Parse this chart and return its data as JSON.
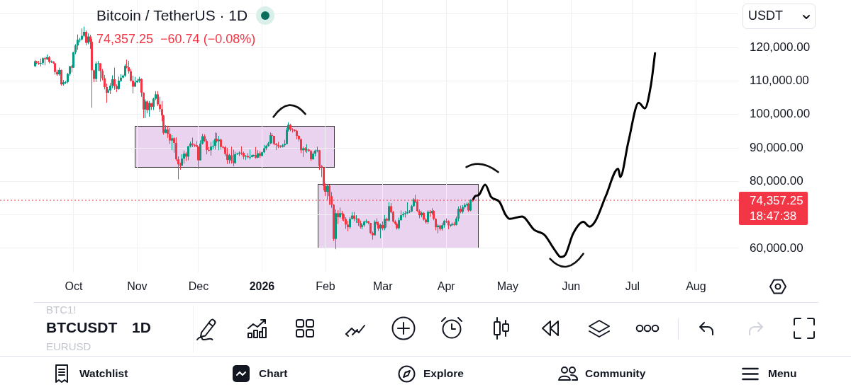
{
  "chart_data": {
    "type": "candlestick",
    "title": "Bitcoin / TetherUS · 1D",
    "subtitle": "74,357.25  −60.74 (−0.08%)",
    "series": [
      {
        "x": [
          "2025-09-12",
          "2025-09-13",
          "2025-09-14",
          "2025-09-15",
          "2025-09-16",
          "2025-09-17",
          "2025-09-18",
          "2025-09-19",
          "2025-09-20",
          "2025-09-21",
          "2025-09-22",
          "2025-09-23",
          "2025-09-24",
          "2025-09-25",
          "2025-09-26",
          "2025-09-27",
          "2025-09-28",
          "2025-09-29",
          "2025-09-30",
          "2025-10-01",
          "2025-10-02",
          "2025-10-03",
          "2025-10-04",
          "2025-10-05",
          "2025-10-06",
          "2025-10-07",
          "2025-10-08",
          "2025-10-09",
          "2025-10-10",
          "2025-10-11",
          "2025-10-12",
          "2025-10-13",
          "2025-10-14",
          "2025-10-15",
          "2025-10-16",
          "2025-10-17",
          "2025-10-18",
          "2025-10-19",
          "2025-10-20",
          "2025-10-21",
          "2025-10-22",
          "2025-10-23",
          "2025-10-24",
          "2025-10-25",
          "2025-10-26",
          "2025-10-27",
          "2025-10-28",
          "2025-10-29",
          "2025-10-30",
          "2025-10-31",
          "2025-11-01",
          "2025-11-02",
          "2025-11-03",
          "2025-11-04",
          "2025-11-05",
          "2025-11-06",
          "2025-11-07",
          "2025-11-08",
          "2025-11-09",
          "2025-11-10",
          "2025-11-11",
          "2025-11-12",
          "2025-11-13",
          "2025-11-14",
          "2025-11-15",
          "2025-11-16",
          "2025-11-17",
          "2025-11-18",
          "2025-11-19",
          "2025-11-20",
          "2025-11-21",
          "2025-11-22",
          "2025-11-23",
          "2025-11-24",
          "2025-11-25",
          "2025-11-26",
          "2025-11-27",
          "2025-11-28",
          "2025-11-29",
          "2025-11-30",
          "2025-12-01",
          "2025-12-02",
          "2025-12-03",
          "2025-12-04",
          "2025-12-05",
          "2025-12-06",
          "2025-12-07",
          "2025-12-08",
          "2025-12-09",
          "2025-12-10",
          "2025-12-11",
          "2025-12-12",
          "2025-12-13",
          "2025-12-14",
          "2025-12-15",
          "2025-12-16",
          "2025-12-17",
          "2025-12-18",
          "2025-12-19",
          "2025-12-20",
          "2025-12-21",
          "2025-12-22",
          "2025-12-23",
          "2025-12-24",
          "2025-12-25",
          "2025-12-26",
          "2025-12-27",
          "2025-12-28",
          "2025-12-29",
          "2025-12-30",
          "2025-12-31",
          "2026-01-01",
          "2026-01-02",
          "2026-01-03",
          "2026-01-04",
          "2026-01-05",
          "2026-01-06",
          "2026-01-07",
          "2026-01-08",
          "2026-01-09",
          "2026-01-10",
          "2026-01-11",
          "2026-01-12",
          "2026-01-13",
          "2026-01-14",
          "2026-01-15",
          "2026-01-16",
          "2026-01-17",
          "2026-01-18",
          "2026-01-19",
          "2026-01-20",
          "2026-01-21",
          "2026-01-22",
          "2026-01-23",
          "2026-01-24",
          "2026-01-25",
          "2026-01-26",
          "2026-01-27",
          "2026-01-28",
          "2026-01-29",
          "2026-01-30",
          "2026-01-31",
          "2026-02-01",
          "2026-02-02",
          "2026-02-03",
          "2026-02-04",
          "2026-02-05",
          "2026-02-06",
          "2026-02-07",
          "2026-02-08",
          "2026-02-09",
          "2026-02-10",
          "2026-02-11",
          "2026-02-12",
          "2026-02-13",
          "2026-02-14",
          "2026-02-15",
          "2026-02-16",
          "2026-02-17",
          "2026-02-18",
          "2026-02-19",
          "2026-02-20",
          "2026-02-21",
          "2026-02-22",
          "2026-02-23",
          "2026-02-24",
          "2026-02-25",
          "2026-02-26",
          "2026-02-27",
          "2026-02-28",
          "2026-03-01",
          "2026-03-02",
          "2026-03-03",
          "2026-03-04",
          "2026-03-05",
          "2026-03-06",
          "2026-03-07",
          "2026-03-08",
          "2026-03-09",
          "2026-03-10",
          "2026-03-11",
          "2026-03-12",
          "2026-03-13",
          "2026-03-14",
          "2026-03-15",
          "2026-03-16",
          "2026-03-17",
          "2026-03-18",
          "2026-03-19",
          "2026-03-20",
          "2026-03-21",
          "2026-03-22",
          "2026-03-23",
          "2026-03-24",
          "2026-03-25",
          "2026-03-26",
          "2026-03-27",
          "2026-03-28",
          "2026-03-29",
          "2026-03-30",
          "2026-03-31",
          "2026-04-01",
          "2026-04-02",
          "2026-04-03",
          "2026-04-04",
          "2026-04-05",
          "2026-04-06",
          "2026-04-07",
          "2026-04-08",
          "2026-04-09",
          "2026-04-10",
          "2026-04-11",
          "2026-04-12",
          "2026-04-13",
          "2026-04-14"
        ],
        "ohlc": [
          [
            114400,
            116300,
            114200,
            115900
          ],
          [
            115900,
            116000,
            115000,
            115400
          ],
          [
            115400,
            116000,
            114800,
            115300
          ],
          [
            115300,
            116700,
            114400,
            115400
          ],
          [
            115400,
            117000,
            114800,
            116800
          ],
          [
            116800,
            117300,
            114700,
            116500
          ],
          [
            116500,
            117900,
            116300,
            117100
          ],
          [
            117100,
            117500,
            115200,
            115700
          ],
          [
            115700,
            116100,
            115400,
            115800
          ],
          [
            115800,
            115900,
            115100,
            115300
          ],
          [
            115300,
            115400,
            111900,
            112700
          ],
          [
            112700,
            113300,
            111600,
            112000
          ],
          [
            112000,
            114000,
            111600,
            113300
          ],
          [
            113300,
            113400,
            108600,
            109000
          ],
          [
            109000,
            110300,
            108600,
            109600
          ],
          [
            109600,
            110000,
            109100,
            109700
          ],
          [
            109700,
            112400,
            109300,
            112100
          ],
          [
            112100,
            114500,
            111600,
            114400
          ],
          [
            114400,
            114800,
            112600,
            114000
          ],
          [
            114000,
            118700,
            113900,
            118600
          ],
          [
            118600,
            121000,
            118000,
            120600
          ],
          [
            120600,
            123900,
            119300,
            122300
          ],
          [
            122300,
            122900,
            121500,
            122400
          ],
          [
            122400,
            125700,
            122100,
            123500
          ],
          [
            123500,
            126200,
            123100,
            124700
          ],
          [
            124700,
            125100,
            120600,
            121400
          ],
          [
            121400,
            124200,
            121000,
            123300
          ],
          [
            123300,
            123800,
            119600,
            121700
          ],
          [
            121700,
            122600,
            102000,
            113200
          ],
          [
            113200,
            113400,
            109600,
            110600
          ],
          [
            110600,
            115800,
            109700,
            115200
          ],
          [
            115200,
            116000,
            113000,
            115300
          ],
          [
            115300,
            115300,
            109800,
            113000
          ],
          [
            113000,
            113600,
            110200,
            110800
          ],
          [
            110800,
            111800,
            107500,
            108200
          ],
          [
            108200,
            109200,
            103500,
            106500
          ],
          [
            106500,
            107500,
            106400,
            107200
          ],
          [
            107200,
            109400,
            106100,
            108600
          ],
          [
            108600,
            111700,
            107800,
            110500
          ],
          [
            110500,
            114000,
            107400,
            108400
          ],
          [
            108400,
            109000,
            106700,
            107600
          ],
          [
            107600,
            111300,
            107400,
            110100
          ],
          [
            110100,
            112000,
            109700,
            111000
          ],
          [
            111000,
            111900,
            110800,
            111600
          ],
          [
            111600,
            115000,
            111200,
            114500
          ],
          [
            114500,
            116400,
            113800,
            114100
          ],
          [
            114100,
            116000,
            112200,
            112900
          ],
          [
            112900,
            113600,
            109800,
            110100
          ],
          [
            110100,
            111600,
            106300,
            108300
          ],
          [
            108300,
            111200,
            108300,
            109600
          ],
          [
            109600,
            110600,
            109400,
            110100
          ],
          [
            110100,
            111200,
            109500,
            110600
          ],
          [
            110600,
            110800,
            105300,
            106500
          ],
          [
            106500,
            106600,
            98900,
            101500
          ],
          [
            101500,
            104500,
            98900,
            103900
          ],
          [
            103900,
            104200,
            100300,
            101300
          ],
          [
            101300,
            104000,
            99300,
            103400
          ],
          [
            103400,
            103400,
            101400,
            102300
          ],
          [
            102300,
            105000,
            101300,
            104700
          ],
          [
            104700,
            107000,
            104300,
            106000
          ],
          [
            106000,
            107000,
            102500,
            103000
          ],
          [
            103000,
            105300,
            100800,
            101600
          ],
          [
            101600,
            104000,
            98000,
            99700
          ],
          [
            99700,
            99900,
            94000,
            94500
          ],
          [
            94500,
            96800,
            94400,
            95500
          ],
          [
            95500,
            96600,
            93000,
            94200
          ],
          [
            94200,
            96000,
            91200,
            92200
          ],
          [
            92200,
            93800,
            89300,
            92900
          ],
          [
            92900,
            93200,
            88600,
            91500
          ],
          [
            91500,
            93200,
            86100,
            86600
          ],
          [
            86600,
            87500,
            80600,
            85100
          ],
          [
            85100,
            85600,
            83500,
            84700
          ],
          [
            84700,
            88100,
            84600,
            86800
          ],
          [
            86800,
            89200,
            85300,
            88300
          ],
          [
            88300,
            88800,
            86100,
            87400
          ],
          [
            87400,
            90600,
            86300,
            90500
          ],
          [
            90500,
            91900,
            90100,
            91300
          ],
          [
            91300,
            93100,
            90200,
            90900
          ],
          [
            90900,
            91200,
            90200,
            90800
          ],
          [
            90800,
            92000,
            90300,
            90400
          ],
          [
            90400,
            90400,
            83800,
            86300
          ],
          [
            86300,
            92300,
            86200,
            91300
          ],
          [
            91300,
            94200,
            91000,
            93500
          ],
          [
            93500,
            94100,
            91800,
            92100
          ],
          [
            92100,
            92700,
            88100,
            89400
          ],
          [
            89400,
            90300,
            88900,
            89300
          ],
          [
            89300,
            91800,
            87700,
            90400
          ],
          [
            90400,
            92300,
            89600,
            90600
          ],
          [
            90600,
            94600,
            89500,
            92700
          ],
          [
            92700,
            94500,
            91600,
            92000
          ],
          [
            92000,
            93600,
            89300,
            92500
          ],
          [
            92500,
            92800,
            89500,
            90300
          ],
          [
            90300,
            90600,
            89800,
            90200
          ],
          [
            90200,
            90600,
            87600,
            88200
          ],
          [
            88200,
            90000,
            85200,
            86400
          ],
          [
            86400,
            88200,
            85300,
            87800
          ],
          [
            87800,
            90400,
            85300,
            86100
          ],
          [
            86100,
            89500,
            84500,
            85500
          ],
          [
            85500,
            88900,
            85200,
            88100
          ],
          [
            88100,
            88600,
            87900,
            88300
          ],
          [
            88300,
            89000,
            87600,
            88600
          ],
          [
            88600,
            90500,
            87900,
            88500
          ],
          [
            88500,
            88900,
            86600,
            87400
          ],
          [
            87400,
            87900,
            86400,
            87600
          ],
          [
            87600,
            88400,
            86900,
            87200
          ],
          [
            87200,
            89500,
            86600,
            87300
          ],
          [
            87300,
            88000,
            87200,
            87800
          ],
          [
            87800,
            88000,
            87400,
            87900
          ],
          [
            87900,
            90300,
            86800,
            87100
          ],
          [
            87100,
            89300,
            86900,
            88400
          ],
          [
            88400,
            89000,
            87000,
            87600
          ],
          [
            87600,
            88900,
            87500,
            88700
          ],
          [
            88700,
            90900,
            88400,
            89900
          ],
          [
            89900,
            90900,
            89300,
            90600
          ],
          [
            90600,
            91800,
            90400,
            91400
          ],
          [
            91400,
            94600,
            91100,
            93800
          ],
          [
            93800,
            94400,
            91300,
            93600
          ],
          [
            93600,
            93600,
            90800,
            91200
          ],
          [
            91200,
            91500,
            89400,
            90900
          ],
          [
            90900,
            91800,
            89900,
            90500
          ],
          [
            90500,
            90800,
            90000,
            90300
          ],
          [
            90300,
            91200,
            90100,
            90800
          ],
          [
            90800,
            92400,
            90200,
            91200
          ],
          [
            91200,
            96000,
            91000,
            95400
          ],
          [
            95400,
            97700,
            94900,
            96900
          ],
          [
            96900,
            97200,
            95000,
            95500
          ],
          [
            95500,
            95900,
            94600,
            95400
          ],
          [
            95400,
            95600,
            94800,
            95100
          ],
          [
            95100,
            95400,
            92600,
            93600
          ],
          [
            93600,
            93800,
            91900,
            92600
          ],
          [
            92600,
            92800,
            88400,
            89300
          ],
          [
            89300,
            90400,
            87300,
            89900
          ],
          [
            89900,
            90200,
            88800,
            89400
          ],
          [
            89400,
            91100,
            88500,
            89500
          ],
          [
            89500,
            89800,
            88800,
            89100
          ],
          [
            89100,
            89300,
            86100,
            86600
          ],
          [
            86600,
            88900,
            86500,
            88300
          ],
          [
            88300,
            89500,
            87500,
            89200
          ],
          [
            89200,
            90400,
            88700,
            89300
          ],
          [
            89300,
            89300,
            83400,
            84600
          ],
          [
            84600,
            84900,
            81300,
            84200
          ],
          [
            84200,
            84200,
            77300,
            78600
          ],
          [
            78600,
            79400,
            75600,
            76900
          ],
          [
            76900,
            79200,
            74500,
            78700
          ],
          [
            78700,
            79000,
            73000,
            75600
          ],
          [
            75600,
            76800,
            72100,
            73000
          ],
          [
            73000,
            73200,
            62200,
            62800
          ],
          [
            62800,
            71600,
            59700,
            70500
          ],
          [
            70500,
            71400,
            67300,
            69300
          ],
          [
            69300,
            72200,
            69000,
            70500
          ],
          [
            70500,
            71200,
            68300,
            70100
          ],
          [
            70100,
            70400,
            68100,
            68800
          ],
          [
            68800,
            69300,
            65800,
            67100
          ],
          [
            67100,
            68200,
            65100,
            66300
          ],
          [
            66300,
            69300,
            65800,
            68800
          ],
          [
            68800,
            70800,
            68600,
            69800
          ],
          [
            69800,
            70900,
            68100,
            68800
          ],
          [
            68800,
            69900,
            67600,
            68900
          ],
          [
            68900,
            69000,
            66700,
            67600
          ],
          [
            67600,
            68300,
            65900,
            66400
          ],
          [
            66400,
            67300,
            65700,
            66900
          ],
          [
            66900,
            68300,
            66400,
            68000
          ],
          [
            68000,
            68700,
            67500,
            68100
          ],
          [
            68100,
            68200,
            67200,
            67600
          ],
          [
            67600,
            67600,
            64300,
            64600
          ],
          [
            64600,
            65000,
            62600,
            63900
          ],
          [
            63900,
            68400,
            63900,
            67900
          ],
          [
            67900,
            69000,
            66900,
            67400
          ],
          [
            67400,
            68000,
            65200,
            65900
          ],
          [
            65900,
            67400,
            63000,
            67000
          ],
          [
            67000,
            68000,
            65400,
            66000
          ],
          [
            66000,
            70000,
            65400,
            68800
          ],
          [
            68800,
            69200,
            66200,
            68300
          ],
          [
            68300,
            73800,
            67900,
            72600
          ],
          [
            72600,
            73500,
            70400,
            70800
          ],
          [
            70800,
            71200,
            67700,
            68000
          ],
          [
            68000,
            68400,
            67000,
            67300
          ],
          [
            67300,
            67500,
            65600,
            66000
          ],
          [
            66000,
            69200,
            65600,
            68400
          ],
          [
            68400,
            71300,
            68300,
            69900
          ],
          [
            69900,
            70900,
            69300,
            70200
          ],
          [
            70200,
            71200,
            69200,
            70500
          ],
          [
            70500,
            73800,
            70200,
            70900
          ],
          [
            70900,
            71400,
            70500,
            71000
          ],
          [
            71000,
            73000,
            70900,
            72600
          ],
          [
            72600,
            75000,
            72400,
            74600
          ],
          [
            74600,
            76000,
            73500,
            74000
          ],
          [
            74000,
            74700,
            70800,
            71200
          ],
          [
            71200,
            71600,
            69000,
            69900
          ],
          [
            69900,
            71000,
            69300,
            70600
          ],
          [
            70600,
            70800,
            68300,
            68600
          ],
          [
            68600,
            69000,
            67400,
            67800
          ],
          [
            67800,
            71400,
            67300,
            70900
          ],
          [
            70900,
            71400,
            69400,
            70500
          ],
          [
            70500,
            72000,
            70100,
            71200
          ],
          [
            71200,
            71400,
            68400,
            68800
          ],
          [
            68800,
            69000,
            65400,
            66300
          ],
          [
            66300,
            67300,
            64500,
            66800
          ],
          [
            66800,
            67000,
            65300,
            65800
          ],
          [
            65800,
            67600,
            65300,
            66900
          ],
          [
            66900,
            68500,
            66100,
            68200
          ],
          [
            68200,
            68900,
            67600,
            68100
          ],
          [
            68100,
            68400,
            65700,
            66900
          ],
          [
            66900,
            67200,
            66400,
            67000
          ],
          [
            67000,
            67700,
            66700,
            67300
          ],
          [
            67300,
            67900,
            66700,
            67000
          ],
          [
            67000,
            69500,
            66800,
            68900
          ],
          [
            68900,
            72500,
            68100,
            71800
          ],
          [
            71800,
            72800,
            70500,
            70900
          ],
          [
            70900,
            72900,
            70400,
            72300
          ],
          [
            72300,
            73500,
            71700,
            73000
          ],
          [
            73000,
            73700,
            72600,
            73300
          ],
          [
            73300,
            73600,
            70900,
            71300
          ],
          [
            71300,
            74700,
            71100,
            74418
          ],
          [
            74418,
            74600,
            73900,
            74357.25
          ]
        ],
        "colors": [
          "#089981",
          "#f23645",
          "#f23645",
          "#089981",
          "#089981",
          "#f23645",
          "#089981",
          "#f23645",
          "#089981",
          "#f23645",
          "#f23645",
          "#f23645",
          "#089981",
          "#f23645",
          "#089981",
          "#089981",
          "#089981",
          "#089981",
          "#f23645",
          "#089981",
          "#089981",
          "#089981",
          "#089981",
          "#089981",
          "#089981",
          "#f23645",
          "#089981",
          "#f23645",
          "#f23645",
          "#f23645",
          "#089981",
          "#089981",
          "#f23645",
          "#f23645",
          "#f23645",
          "#f23645",
          "#089981",
          "#089981",
          "#089981",
          "#f23645",
          "#f23645",
          "#089981",
          "#089981",
          "#089981",
          "#089981",
          "#f23645",
          "#f23645",
          "#f23645",
          "#f23645",
          "#089981",
          "#089981",
          "#089981",
          "#f23645",
          "#f23645",
          "#089981",
          "#f23645",
          "#089981",
          "#f23645",
          "#089981",
          "#089981",
          "#f23645",
          "#f23645",
          "#f23645",
          "#f23645",
          "#089981",
          "#f23645",
          "#f23645",
          "#089981",
          "#f23645",
          "#f23645",
          "#f23645",
          "#f23645",
          "#089981",
          "#089981",
          "#f23645",
          "#089981",
          "#089981",
          "#f23645",
          "#f23645",
          "#f23645",
          "#f23645",
          "#089981",
          "#089981",
          "#f23645",
          "#f23645",
          "#f23645",
          "#089981",
          "#089981",
          "#089981",
          "#f23645",
          "#089981",
          "#f23645",
          "#f23645",
          "#f23645",
          "#f23645",
          "#089981",
          "#f23645",
          "#f23645",
          "#089981",
          "#089981",
          "#089981",
          "#f23645",
          "#f23645",
          "#089981",
          "#f23645",
          "#089981",
          "#089981",
          "#089981",
          "#f23645",
          "#089981",
          "#f23645",
          "#089981",
          "#089981",
          "#089981",
          "#089981",
          "#089981",
          "#f23645",
          "#f23645",
          "#f23645",
          "#f23645",
          "#f23645",
          "#089981",
          "#089981",
          "#089981",
          "#089981",
          "#f23645",
          "#f23645",
          "#f23645",
          "#f23645",
          "#f23645",
          "#f23645",
          "#089981",
          "#f23645",
          "#089981",
          "#f23645",
          "#f23645",
          "#089981",
          "#089981",
          "#089981",
          "#f23645",
          "#f23645",
          "#f23645",
          "#f23645",
          "#089981",
          "#f23645",
          "#f23645",
          "#f23645",
          "#089981",
          "#f23645",
          "#089981",
          "#f23645",
          "#f23645",
          "#f23645",
          "#f23645",
          "#089981",
          "#089981",
          "#f23645",
          "#089981",
          "#f23645",
          "#f23645",
          "#089981",
          "#089981",
          "#089981",
          "#f23645",
          "#f23645",
          "#f23645",
          "#089981",
          "#f23645",
          "#f23645",
          "#089981",
          "#f23645",
          "#089981",
          "#f23645",
          "#089981",
          "#f23645",
          "#f23645",
          "#f23645",
          "#f23645",
          "#089981",
          "#089981",
          "#089981",
          "#089981",
          "#089981",
          "#089981",
          "#089981",
          "#089981",
          "#f23645",
          "#f23645",
          "#f23645",
          "#089981",
          "#f23645",
          "#f23645",
          "#089981",
          "#f23645",
          "#089981",
          "#f23645",
          "#f23645",
          "#089981",
          "#f23645",
          "#089981",
          "#089981",
          "#f23645",
          "#f23645",
          "#089981",
          "#089981",
          "#f23645",
          "#089981",
          "#089981",
          "#f23645",
          "#089981",
          "#089981",
          "#089981",
          "#f23645",
          "#089981",
          "#f23645"
        ]
      },
      {
        "type": "line",
        "color": "#000000",
        "x": [
          "2026-04-14",
          "2026-04-15",
          "2026-04-17",
          "2026-04-20",
          "2026-04-23",
          "2026-04-27",
          "2026-04-30",
          "2026-05-02",
          "2026-05-08",
          "2026-05-14",
          "2026-05-19",
          "2026-05-24",
          "2026-05-27",
          "2026-05-29",
          "2026-06-02",
          "2026-06-07",
          "2026-06-10",
          "2026-06-13",
          "2026-06-18",
          "2026-06-24",
          "2026-06-25",
          "2026-06-29",
          "2026-07-04",
          "2026-07-07",
          "2026-07-10",
          "2026-07-12"
        ],
        "values": [
          74400,
          75500,
          76000,
          79000,
          75300,
          73900,
          70000,
          68800,
          69500,
          65500,
          64000,
          59500,
          57400,
          57900,
          64400,
          67900,
          66500,
          68300,
          75700,
          83800,
          81300,
          91900,
          103500,
          101800,
          108800,
          118300
        ]
      }
    ],
    "xlim": [
      "2025-08-26",
      "2026-08-22"
    ],
    "xticks": [
      {
        "value": "2025-10-01",
        "label": "Oct"
      },
      {
        "value": "2025-11-01",
        "label": "Nov"
      },
      {
        "value": "2025-12-01",
        "label": "Dec"
      },
      {
        "value": "2026-01-01",
        "label": "2026"
      },
      {
        "value": "2026-02-01",
        "label": "Feb"
      },
      {
        "value": "2026-03-01",
        "label": "Mar"
      },
      {
        "value": "2026-04-01",
        "label": "Apr"
      },
      {
        "value": "2026-05-01",
        "label": "May"
      },
      {
        "value": "2026-06-01",
        "label": "Jun"
      },
      {
        "value": "2026-07-01",
        "label": "Jul"
      },
      {
        "value": "2026-08-01",
        "label": "Aug"
      }
    ],
    "ylim": [
      52800,
      134200
    ],
    "yticks": [
      {
        "value": 60000,
        "label": "60,000.00"
      },
      {
        "value": 70000,
        "label": null
      },
      {
        "value": 80000,
        "label": "80,000.00"
      },
      {
        "value": 90000,
        "label": "90,000.00"
      },
      {
        "value": 100000,
        "label": "100,000.00"
      },
      {
        "value": 110000,
        "label": "110,000.00"
      },
      {
        "value": 120000,
        "label": "120,000.00"
      },
      {
        "value": 130000,
        "label": null
      }
    ],
    "grid": true,
    "ref_lines": [
      {
        "axis": "y",
        "value": 74357.25,
        "label": "74,357.25",
        "color": "#f23645",
        "line_style": "dotted"
      }
    ],
    "annotations": [
      "USDT",
      "18:47:38",
      "BTC1!",
      "BTCUSDT",
      "1D",
      "EURUSD",
      "Watchlist",
      "Chart",
      "Explore",
      "Community",
      "Menu"
    ]
  }
}
